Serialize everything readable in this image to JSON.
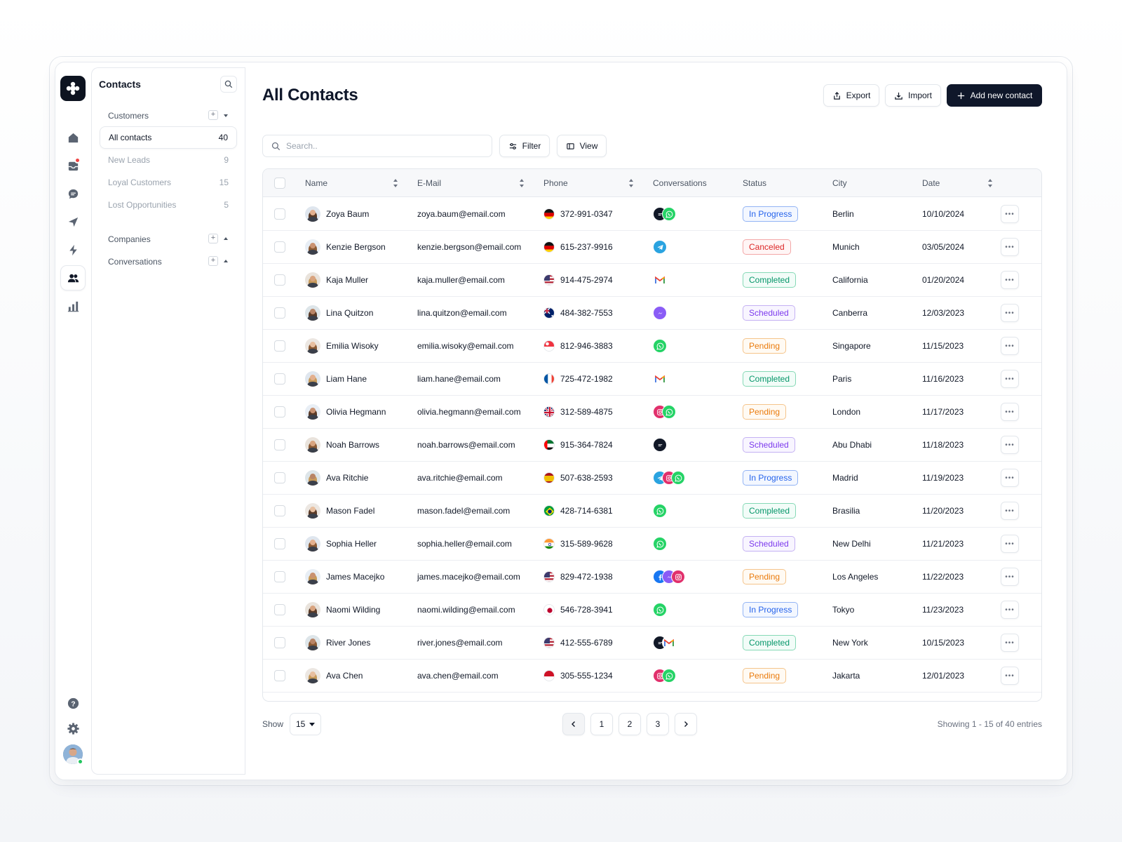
{
  "sidebar": {
    "title": "Contacts",
    "customers_label": "Customers",
    "items": [
      {
        "label": "All contacts",
        "count": "40"
      },
      {
        "label": "New Leads",
        "count": "9"
      },
      {
        "label": "Loyal Customers",
        "count": "15"
      },
      {
        "label": "Lost Opportunities",
        "count": "5"
      }
    ],
    "companies_label": "Companies",
    "conversations_label": "Conversations"
  },
  "header": {
    "title": "All Contacts",
    "export_label": "Export",
    "import_label": "Import",
    "add_label": "Add new contact"
  },
  "toolbar": {
    "search_placeholder": "Search..",
    "filter_label": "Filter",
    "view_label": "View"
  },
  "table": {
    "columns": [
      "Name",
      "E-Mail",
      "Phone",
      "Conversations",
      "Status",
      "City",
      "Date"
    ],
    "rows": [
      {
        "name": "Zoya Baum",
        "email": "zoya.baum@email.com",
        "phone": "372-991-0347",
        "flag": "de",
        "channels": [
          "chat",
          "whatsapp"
        ],
        "status": "In Progress",
        "city": "Berlin",
        "date": "10/10/2024"
      },
      {
        "name": "Kenzie Bergson",
        "email": "kenzie.bergson@email.com",
        "phone": "615-237-9916",
        "flag": "de",
        "channels": [
          "telegram"
        ],
        "status": "Canceled",
        "city": "Munich",
        "date": "03/05/2024"
      },
      {
        "name": "Kaja Muller",
        "email": "kaja.muller@email.com",
        "phone": "914-475-2974",
        "flag": "us",
        "channels": [
          "gmail"
        ],
        "status": "Completed",
        "city": "California",
        "date": "01/20/2024"
      },
      {
        "name": "Lina Quitzon",
        "email": "lina.quitzon@email.com",
        "phone": "484-382-7553",
        "flag": "au",
        "channels": [
          "messenger"
        ],
        "status": "Scheduled",
        "city": "Canberra",
        "date": "12/03/2023"
      },
      {
        "name": "Emilia Wisoky",
        "email": "emilia.wisoky@email.com",
        "phone": "812-946-3883",
        "flag": "sg",
        "channels": [
          "whatsapp"
        ],
        "status": "Pending",
        "city": "Singapore",
        "date": "11/15/2023"
      },
      {
        "name": "Liam Hane",
        "email": "liam.hane@email.com",
        "phone": "725-472-1982",
        "flag": "fr",
        "channels": [
          "gmail"
        ],
        "status": "Completed",
        "city": "Paris",
        "date": "11/16/2023"
      },
      {
        "name": "Olivia Hegmann",
        "email": "olivia.hegmann@email.com",
        "phone": "312-589-4875",
        "flag": "gb",
        "channels": [
          "instagram",
          "whatsapp"
        ],
        "status": "Pending",
        "city": "London",
        "date": "11/17/2023"
      },
      {
        "name": "Noah Barrows",
        "email": "noah.barrows@email.com",
        "phone": "915-364-7824",
        "flag": "ae",
        "channels": [
          "chat"
        ],
        "status": "Scheduled",
        "city": "Abu Dhabi",
        "date": "11/18/2023"
      },
      {
        "name": "Ava Ritchie",
        "email": "ava.ritchie@email.com",
        "phone": "507-638-2593",
        "flag": "es",
        "channels": [
          "telegram",
          "instagram",
          "whatsapp"
        ],
        "status": "In Progress",
        "city": "Madrid",
        "date": "11/19/2023"
      },
      {
        "name": "Mason Fadel",
        "email": "mason.fadel@email.com",
        "phone": "428-714-6381",
        "flag": "br",
        "channels": [
          "whatsapp"
        ],
        "status": "Completed",
        "city": "Brasilia",
        "date": "11/20/2023"
      },
      {
        "name": "Sophia Heller",
        "email": "sophia.heller@email.com",
        "phone": "315-589-9628",
        "flag": "in",
        "channels": [
          "whatsapp"
        ],
        "status": "Scheduled",
        "city": "New Delhi",
        "date": "11/21/2023"
      },
      {
        "name": "James Macejko",
        "email": "james.macejko@email.com",
        "phone": "829-472-1938",
        "flag": "us",
        "channels": [
          "facebook",
          "messenger",
          "instagram"
        ],
        "status": "Pending",
        "city": "Los Angeles",
        "date": "11/22/2023"
      },
      {
        "name": "Naomi Wilding",
        "email": "naomi.wilding@email.com",
        "phone": "546-728-3941",
        "flag": "jp",
        "channels": [
          "whatsapp"
        ],
        "status": "In Progress",
        "city": "Tokyo",
        "date": "11/23/2023"
      },
      {
        "name": "River Jones",
        "email": "river.jones@email.com",
        "phone": "412-555-6789",
        "flag": "us",
        "channels": [
          "chat",
          "gmail"
        ],
        "status": "Completed",
        "city": "New York",
        "date": "10/15/2023"
      },
      {
        "name": "Ava Chen",
        "email": "ava.chen@email.com",
        "phone": "305-555-1234",
        "flag": "id",
        "channels": [
          "instagram",
          "whatsapp"
        ],
        "status": "Pending",
        "city": "Jakarta",
        "date": "12/01/2023"
      }
    ]
  },
  "footer": {
    "show_label": "Show",
    "page_size": "15",
    "pages": [
      "1",
      "2",
      "3"
    ],
    "showing_text": "Showing 1 - 15 of 40 entries"
  },
  "colors": {
    "primary": "#0f172a",
    "in_progress": "#2563eb",
    "canceled": "#dc2626",
    "completed": "#059669",
    "scheduled": "#7c3aed",
    "pending": "#ea7b0c"
  }
}
